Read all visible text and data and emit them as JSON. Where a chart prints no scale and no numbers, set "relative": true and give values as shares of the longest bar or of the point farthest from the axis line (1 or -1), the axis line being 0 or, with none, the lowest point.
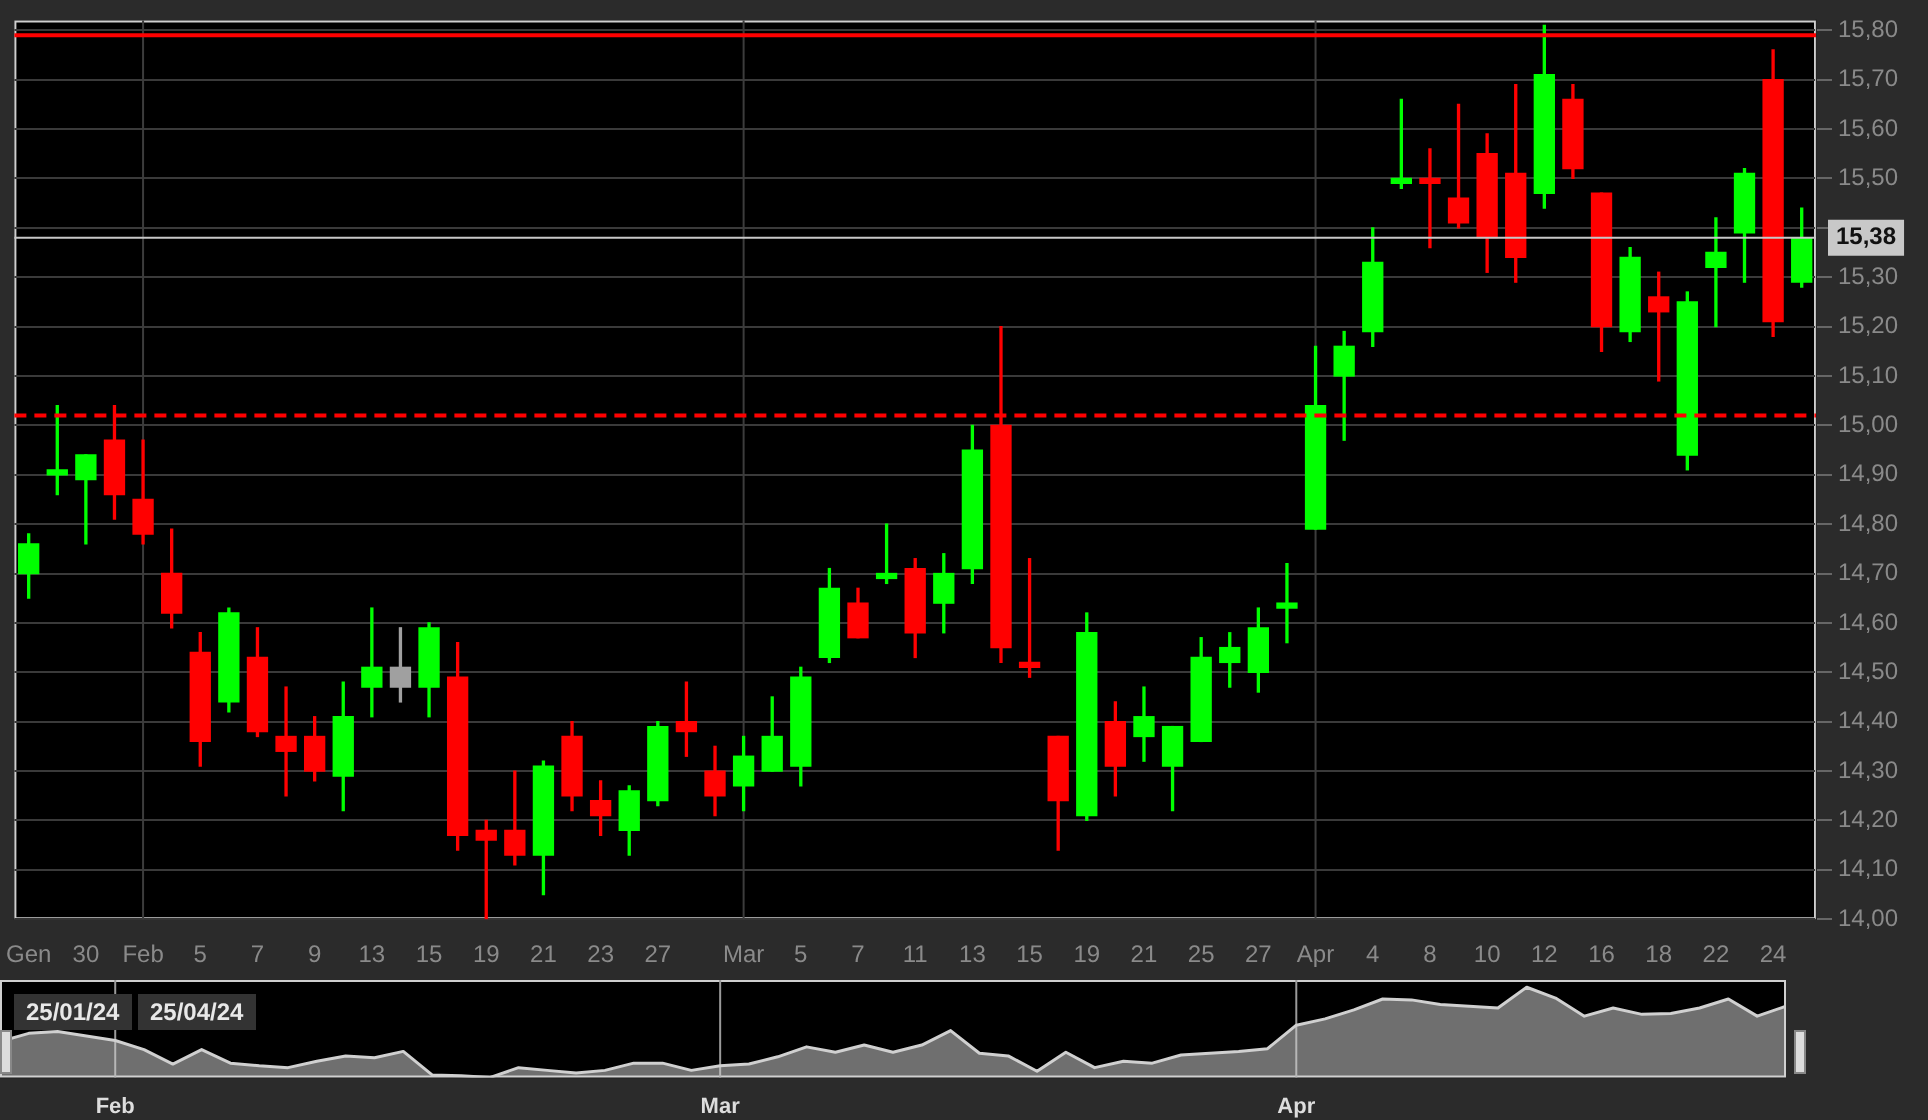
{
  "chart_data": [
    {
      "type": "candlestick",
      "categories": [
        "Gen",
        null,
        "30",
        null,
        "Feb",
        null,
        "5",
        null,
        "7",
        null,
        "9",
        null,
        "13",
        null,
        "15",
        null,
        "19",
        null,
        "21",
        null,
        "23",
        null,
        "27",
        null,
        null,
        "Mar",
        null,
        "5",
        null,
        "7",
        null,
        "11",
        null,
        "13",
        null,
        "15",
        null,
        "19",
        null,
        "21",
        null,
        "25",
        null,
        "27",
        null,
        "Apr",
        null,
        "4",
        null,
        "8",
        null,
        "10",
        null,
        "12",
        null,
        "16",
        null,
        "18",
        null,
        "22",
        null,
        "24",
        null
      ],
      "ohlc": [
        [
          14.7,
          14.78,
          14.65,
          14.76
        ],
        [
          14.9,
          15.04,
          14.86,
          14.91
        ],
        [
          14.89,
          14.94,
          14.76,
          14.94
        ],
        [
          14.97,
          15.04,
          14.81,
          14.86
        ],
        [
          14.85,
          14.97,
          14.76,
          14.78
        ],
        [
          14.7,
          14.79,
          14.59,
          14.62
        ],
        [
          14.54,
          14.58,
          14.31,
          14.36
        ],
        [
          14.44,
          14.63,
          14.42,
          14.62
        ],
        [
          14.53,
          14.59,
          14.37,
          14.38
        ],
        [
          14.37,
          14.47,
          14.25,
          14.34
        ],
        [
          14.37,
          14.41,
          14.28,
          14.3
        ],
        [
          14.29,
          14.48,
          14.22,
          14.41
        ],
        [
          14.47,
          14.63,
          14.41,
          14.51
        ],
        [
          14.51,
          14.59,
          14.44,
          14.47
        ],
        [
          14.47,
          14.6,
          14.41,
          14.59
        ],
        [
          14.49,
          14.56,
          14.14,
          14.17
        ],
        [
          14.18,
          14.2,
          14.0,
          14.16
        ],
        [
          14.18,
          14.3,
          14.11,
          14.13
        ],
        [
          14.13,
          14.32,
          14.05,
          14.31
        ],
        [
          14.37,
          14.4,
          14.22,
          14.25
        ],
        [
          14.24,
          14.28,
          14.17,
          14.21
        ],
        [
          14.18,
          14.27,
          14.13,
          14.26
        ],
        [
          14.24,
          14.4,
          14.23,
          14.39
        ],
        [
          14.4,
          14.48,
          14.33,
          14.38
        ],
        [
          14.3,
          14.35,
          14.21,
          14.25
        ],
        [
          14.27,
          14.37,
          14.22,
          14.33
        ],
        [
          14.3,
          14.45,
          14.3,
          14.37
        ],
        [
          14.31,
          14.51,
          14.27,
          14.49
        ],
        [
          14.53,
          14.71,
          14.52,
          14.67
        ],
        [
          14.64,
          14.67,
          14.57,
          14.57
        ],
        [
          14.69,
          14.8,
          14.68,
          14.7
        ],
        [
          14.71,
          14.73,
          14.53,
          14.58
        ],
        [
          14.64,
          14.74,
          14.58,
          14.7
        ],
        [
          14.71,
          15.0,
          14.68,
          14.95
        ],
        [
          15.0,
          15.2,
          14.52,
          14.55
        ],
        [
          14.52,
          14.73,
          14.49,
          14.51
        ],
        [
          14.37,
          14.37,
          14.14,
          14.24
        ],
        [
          14.21,
          14.62,
          14.2,
          14.58
        ],
        [
          14.4,
          14.44,
          14.25,
          14.31
        ],
        [
          14.37,
          14.47,
          14.32,
          14.41
        ],
        [
          14.31,
          14.39,
          14.22,
          14.39
        ],
        [
          14.36,
          14.57,
          14.36,
          14.53
        ],
        [
          14.52,
          14.58,
          14.47,
          14.55
        ],
        [
          14.5,
          14.63,
          14.46,
          14.59
        ],
        [
          14.63,
          14.72,
          14.56,
          14.64
        ],
        [
          14.79,
          15.16,
          14.79,
          15.04
        ],
        [
          15.1,
          15.19,
          14.97,
          15.16
        ],
        [
          15.19,
          15.4,
          15.16,
          15.33
        ],
        [
          15.49,
          15.66,
          15.48,
          15.5
        ],
        [
          15.5,
          15.56,
          15.36,
          15.49
        ],
        [
          15.46,
          15.65,
          15.4,
          15.41
        ],
        [
          15.55,
          15.59,
          15.31,
          15.38
        ],
        [
          15.51,
          15.69,
          15.29,
          15.34
        ],
        [
          15.47,
          15.81,
          15.44,
          15.71
        ],
        [
          15.66,
          15.69,
          15.5,
          15.52
        ],
        [
          15.47,
          15.47,
          15.15,
          15.2
        ],
        [
          15.19,
          15.36,
          15.17,
          15.34
        ],
        [
          15.26,
          15.31,
          15.09,
          15.23
        ],
        [
          14.94,
          15.27,
          14.91,
          15.25
        ],
        [
          15.32,
          15.42,
          15.2,
          15.35
        ],
        [
          15.39,
          15.52,
          15.29,
          15.51
        ],
        [
          15.7,
          15.76,
          15.18,
          15.21
        ],
        [
          15.29,
          15.44,
          15.28,
          15.38
        ]
      ],
      "colors": [
        "#00ff00",
        "#00ff00",
        "#00ff00",
        "#ff0000",
        "#ff0000",
        "#ff0000",
        "#ff0000",
        "#00ff00",
        "#ff0000",
        "#ff0000",
        "#ff0000",
        "#00ff00",
        "#00ff00",
        "#a0a0a0",
        "#00ff00",
        "#ff0000",
        "#ff0000",
        "#ff0000",
        "#00ff00",
        "#ff0000",
        "#ff0000",
        "#00ff00",
        "#00ff00",
        "#ff0000",
        "#ff0000",
        "#00ff00",
        "#00ff00",
        "#00ff00",
        "#00ff00",
        "#ff0000",
        "#00ff00",
        "#ff0000",
        "#00ff00",
        "#00ff00",
        "#ff0000",
        "#ff0000",
        "#ff0000",
        "#00ff00",
        "#ff0000",
        "#00ff00",
        "#00ff00",
        "#00ff00",
        "#00ff00",
        "#00ff00",
        "#00ff00",
        "#00ff00",
        "#00ff00",
        "#00ff00",
        "#00ff00",
        "#ff0000",
        "#ff0000",
        "#ff0000",
        "#ff0000",
        "#00ff00",
        "#ff0000",
        "#ff0000",
        "#00ff00",
        "#ff0000",
        "#00ff00",
        "#00ff00",
        "#00ff00",
        "#ff0000",
        "#00ff00"
      ],
      "ylim": [
        14,
        15.82
      ],
      "yticks": [
        {
          "value": 14,
          "label": "14,00"
        },
        {
          "value": 14.1,
          "label": "14,10"
        },
        {
          "value": 14.2,
          "label": "14,20"
        },
        {
          "value": 14.3,
          "label": "14,30"
        },
        {
          "value": 14.4,
          "label": "14,40"
        },
        {
          "value": 14.5,
          "label": "14,50"
        },
        {
          "value": 14.6,
          "label": "14,60"
        },
        {
          "value": 14.7,
          "label": "14,70"
        },
        {
          "value": 14.8,
          "label": "14,80"
        },
        {
          "value": 14.9,
          "label": "14,90"
        },
        {
          "value": 15,
          "label": "15,00"
        },
        {
          "value": 15.1,
          "label": "15,10"
        },
        {
          "value": 15.2,
          "label": "15,20"
        },
        {
          "value": 15.3,
          "label": "15,30"
        },
        {
          "value": 15.4,
          "label": null
        },
        {
          "value": 15.5,
          "label": "15,50"
        },
        {
          "value": 15.6,
          "label": "15,60"
        },
        {
          "value": 15.7,
          "label": "15,70"
        },
        {
          "value": 15.8,
          "label": "15,80"
        }
      ],
      "grid": "y",
      "ref_lines": [
        {
          "axis": "y",
          "value": 15.79,
          "color": "#ff0000",
          "line_style": "solid"
        },
        {
          "axis": "y",
          "value": 15.02,
          "color": "#ff0000",
          "line_style": "dashed"
        },
        {
          "axis": "y",
          "value": 15.38,
          "label": "15,38",
          "color": "#c8c8c8",
          "line_style": "solid"
        },
        {
          "axis": "x",
          "value": "Feb",
          "color": "#3c3c3c",
          "line_style": "solid"
        },
        {
          "axis": "x",
          "value": "Mar",
          "color": "#3c3c3c",
          "line_style": "solid"
        },
        {
          "axis": "x",
          "value": "Apr",
          "color": "#3c3c3c",
          "line_style": "solid"
        }
      ]
    },
    {
      "type": "area",
      "relative": true,
      "categories": [
        null,
        null,
        null,
        null,
        "Feb",
        null,
        null,
        null,
        null,
        null,
        null,
        null,
        null,
        null,
        null,
        null,
        null,
        null,
        null,
        null,
        null,
        null,
        null,
        null,
        null,
        "Mar",
        null,
        null,
        null,
        null,
        null,
        null,
        null,
        null,
        null,
        null,
        null,
        null,
        null,
        null,
        null,
        null,
        null,
        null,
        null,
        "Apr",
        null,
        null,
        null,
        null,
        null,
        null,
        null,
        null,
        null,
        null,
        null,
        null,
        null,
        null,
        null,
        null,
        null
      ],
      "series": [
        {
          "color": "#d0d0d0",
          "values": [
            0.4,
            0.49,
            0.51,
            0.46,
            0.41,
            0.31,
            0.15,
            0.31,
            0.16,
            0.13,
            0.11,
            0.18,
            0.24,
            0.22,
            0.29,
            0.03,
            0.02,
            0,
            0.11,
            0.08,
            0.05,
            0.08,
            0.16,
            0.16,
            0.08,
            0.13,
            0.15,
            0.23,
            0.34,
            0.28,
            0.36,
            0.28,
            0.36,
            0.52,
            0.27,
            0.24,
            0.07,
            0.28,
            0.11,
            0.18,
            0.16,
            0.25,
            0.27,
            0.29,
            0.32,
            0.58,
            0.65,
            0.75,
            0.87,
            0.86,
            0.81,
            0.79,
            0.77,
            1,
            0.88,
            0.68,
            0.77,
            0.7,
            0.71,
            0.77,
            0.87,
            0.68,
            0.79
          ]
        }
      ],
      "annotations": [
        "25/01/24",
        "25/04/24"
      ],
      "ref_lines": [
        {
          "axis": "x",
          "value": "Feb",
          "color": "#9a9a9a",
          "line_style": "solid"
        },
        {
          "axis": "x",
          "value": "Mar",
          "color": "#9a9a9a",
          "line_style": "solid"
        },
        {
          "axis": "x",
          "value": "Apr",
          "color": "#9a9a9a",
          "line_style": "solid"
        }
      ]
    }
  ]
}
